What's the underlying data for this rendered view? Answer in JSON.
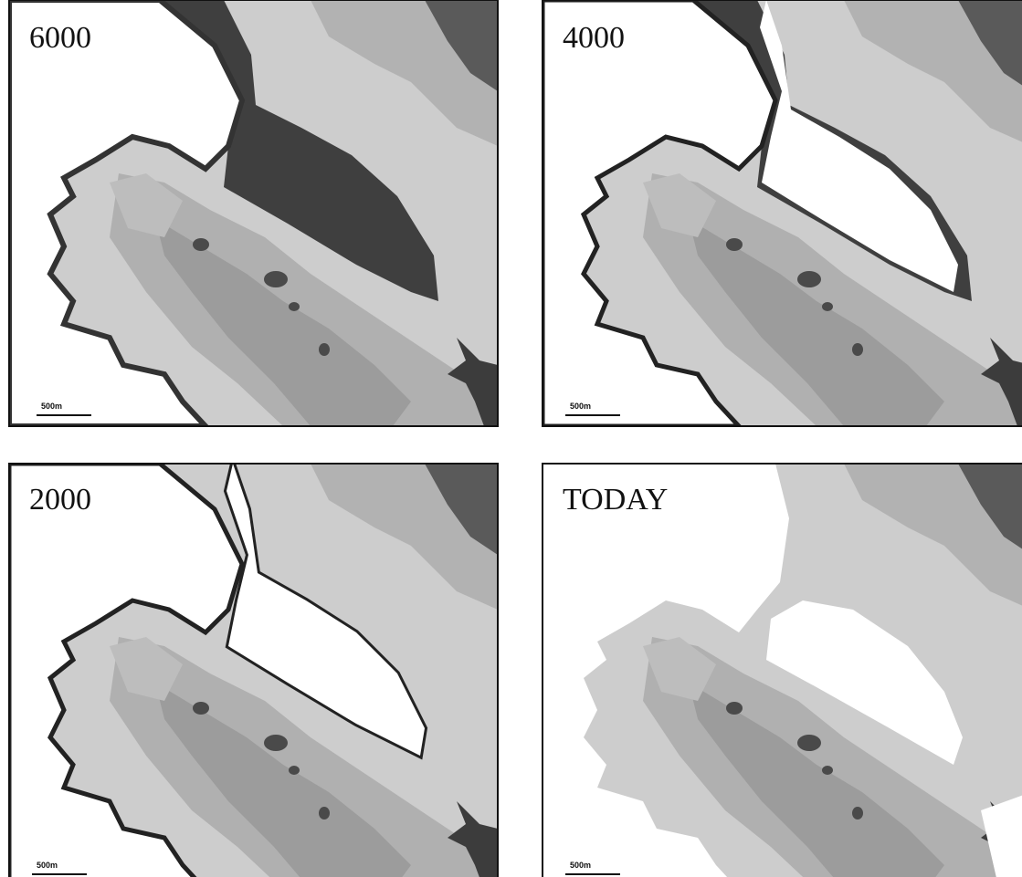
{
  "panels": [
    {
      "label": "6000",
      "scale_label": "500m"
    },
    {
      "label": "4000",
      "scale_label": "500m"
    },
    {
      "label": "2000",
      "scale_label": "500m"
    },
    {
      "label": "TODAY",
      "scale_label": "500m"
    }
  ]
}
